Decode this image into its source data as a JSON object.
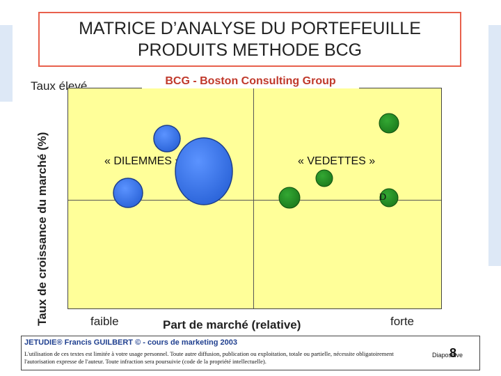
{
  "title": {
    "line1": "MATRICE D’ANALYSE DU PORTEFEUILLE",
    "line2": "PRODUITS METHODE BCG"
  },
  "heading": "BCG - Boston Consulting Group",
  "y_axis": {
    "label": "Taux de croissance du marché (%)",
    "high_label": "Taux élevé"
  },
  "x_axis": {
    "label": "Part de marché (relative)",
    "low_label": "faible",
    "high_label": "forte"
  },
  "quadrants": {
    "dilemmes": "« DILEMMES »",
    "vedettes": "« VEDETTES »"
  },
  "bubble_letter": "D",
  "footer": {
    "heading": "JETUDIE® Francis GUILBERT © - cours de marketing 2003",
    "legal": "L'utilisation de ces textes est limitée à votre usage personnel. Toute autre diffusion, publication ou exploitation, totale ou partielle, nécessite obligatoirement l'autorisation expresse de l'auteur. Toute infraction sera poursuivie (code de la propriété intellectuelle).",
    "slide_label": "Diapositive",
    "slide_number": "8"
  },
  "colors": {
    "matrix_bg": "#ffff99",
    "blue_bubble": "#3a78ee",
    "green_bubble": "#228b22",
    "heading": "#c0392b",
    "title_border": "#e8604c"
  }
}
